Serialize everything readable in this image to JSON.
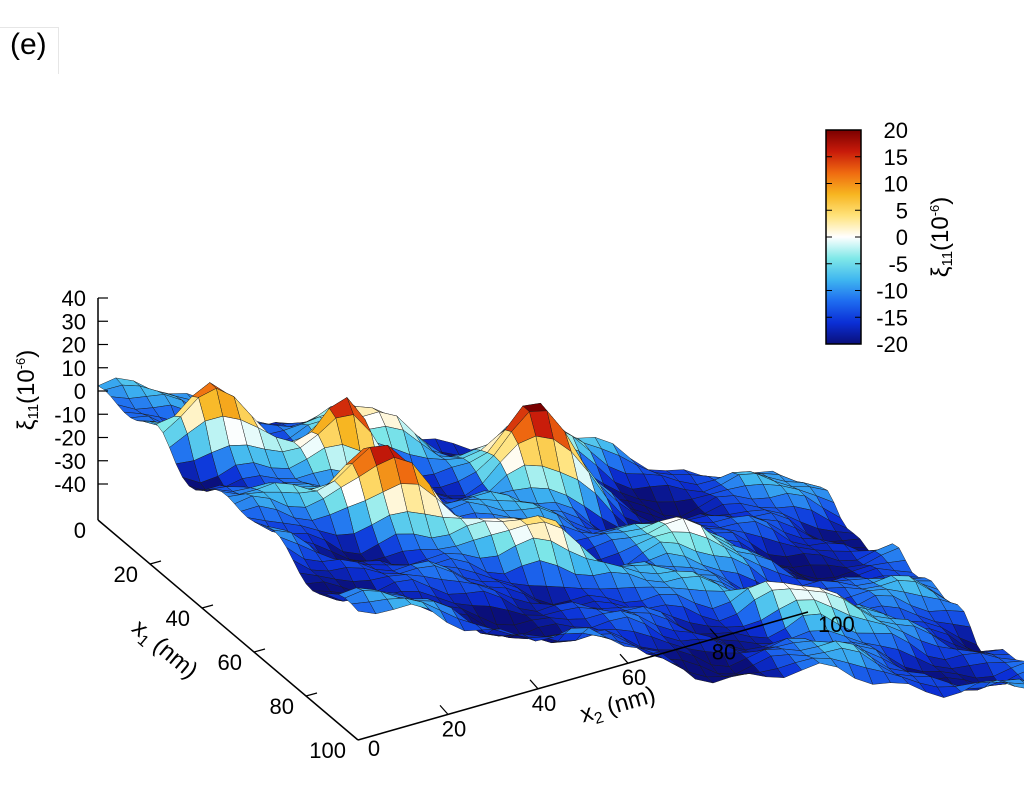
{
  "panel_label": "(e)",
  "colors": {
    "colormap": [
      "#0a0f7a",
      "#0b2fd6",
      "#1e6cf0",
      "#3fb6f0",
      "#7fe8e8",
      "#ffffff",
      "#ffe27a",
      "#f7b520",
      "#ef6a10",
      "#c81a0a",
      "#7a0000"
    ]
  },
  "chart_data": {
    "type": "surface",
    "title": "",
    "xlabel_main": "x",
    "xlabel_sub": "2",
    "xlabel_unit": " (nm)",
    "ylabel_main": "x",
    "ylabel_sub": "1",
    "ylabel_unit": " (nm)",
    "zlabel_main": "ξ",
    "zlabel_sub": "11",
    "zlabel_unit": "(10",
    "zlabel_exp": "-6",
    "zlabel_close": ")",
    "x_range": [
      0,
      100
    ],
    "y_range": [
      0,
      100
    ],
    "z_range": [
      -40,
      40
    ],
    "x_ticks": [
      "0",
      "20",
      "40",
      "60",
      "80",
      "100"
    ],
    "y_ticks": [
      "0",
      "20",
      "40",
      "60",
      "80",
      "100"
    ],
    "z_ticks": [
      "40",
      "30",
      "20",
      "10",
      "0",
      "-10",
      "-20",
      "-30",
      "-40"
    ],
    "colorbar": {
      "range": [
        -20,
        20
      ],
      "ticks": [
        "20",
        "15",
        "10",
        "5",
        "0",
        "-5",
        "-10",
        "-15",
        "-20"
      ]
    },
    "surface_grid_size": 41,
    "peaks": [
      {
        "x": 8,
        "y": 24,
        "z": 18,
        "w": 4
      },
      {
        "x": 22,
        "y": 50,
        "z": 22,
        "w": 5
      },
      {
        "x": 25,
        "y": 28,
        "z": 14,
        "w": 4
      },
      {
        "x": 40,
        "y": 62,
        "z": 6,
        "w": 5
      },
      {
        "x": 54,
        "y": 22,
        "z": 16,
        "w": 5
      },
      {
        "x": 62,
        "y": 48,
        "z": -4,
        "w": 6
      },
      {
        "x": 70,
        "y": 74,
        "z": 4,
        "w": 5
      },
      {
        "x": 36,
        "y": 12,
        "z": -2,
        "w": 6
      },
      {
        "x": 84,
        "y": 32,
        "z": -20,
        "w": 6
      },
      {
        "x": 88,
        "y": 62,
        "z": -14,
        "w": 6
      },
      {
        "x": 72,
        "y": 20,
        "z": -20,
        "w": 7
      },
      {
        "x": 20,
        "y": 82,
        "z": -20,
        "w": 8
      },
      {
        "x": 48,
        "y": 88,
        "z": -20,
        "w": 8
      },
      {
        "x": 60,
        "y": 4,
        "z": 2,
        "w": 4
      }
    ]
  }
}
